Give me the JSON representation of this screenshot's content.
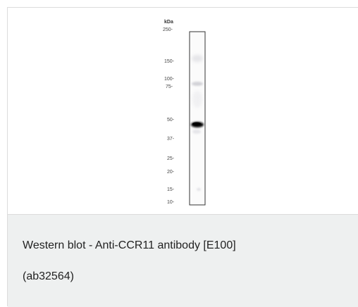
{
  "figure": {
    "unit_label": "kDa",
    "markers": [
      "250-",
      "150-",
      "100-",
      "75-",
      "50-",
      "37-",
      "25-",
      "20-",
      "15-",
      "10-"
    ],
    "band_color": "#111111",
    "lane_border_color": "#333333"
  },
  "caption": {
    "line1": "Western blot - Anti-CCR11 antibody [E100]",
    "line2": "(ab32564)"
  }
}
